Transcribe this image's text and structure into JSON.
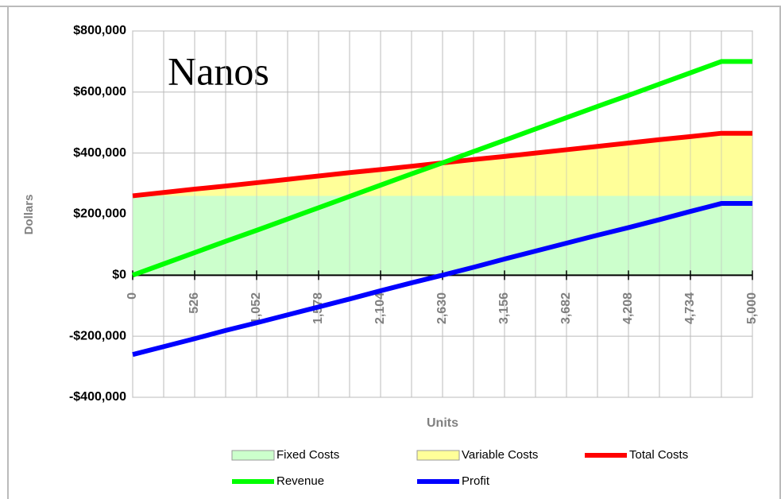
{
  "chart_data": {
    "type": "line",
    "title": "Nanos",
    "x_label": "Units",
    "y_label": "Dollars",
    "categories": [
      "0",
      null,
      "526",
      null,
      "1,052",
      null,
      "1,578",
      null,
      "2,104",
      null,
      "2,630",
      null,
      "3,156",
      null,
      "3,682",
      null,
      "4,208",
      null,
      "4,734",
      null,
      "5,000"
    ],
    "series": [
      {
        "name": "Fixed Costs",
        "kind": "area",
        "color": "#ccffcc",
        "values": [
          260000,
          260000,
          260000,
          260000,
          260000,
          260000,
          260000,
          260000,
          260000,
          260000,
          260000,
          260000,
          260000,
          260000,
          260000,
          260000,
          260000,
          260000,
          260000,
          260000,
          260000
        ]
      },
      {
        "name": "Variable Costs",
        "kind": "area",
        "color": "#ffff99",
        "values": [
          0,
          11000,
          22000,
          32000,
          43000,
          54000,
          65000,
          76000,
          86000,
          97000,
          108000,
          119000,
          129000,
          140000,
          151000,
          162000,
          173000,
          184000,
          194000,
          205000,
          205000
        ]
      },
      {
        "name": "Total Costs",
        "kind": "line",
        "color": "#ff0000",
        "values": [
          260000,
          271000,
          282000,
          292000,
          303000,
          314000,
          325000,
          336000,
          346000,
          357000,
          368000,
          379000,
          389000,
          400000,
          411000,
          422000,
          433000,
          444000,
          454000,
          465000,
          465000
        ]
      },
      {
        "name": "Revenue",
        "kind": "line",
        "color": "#00ff00",
        "values": [
          0,
          37000,
          74000,
          111000,
          147000,
          184000,
          221000,
          258000,
          295000,
          332000,
          368000,
          405000,
          442000,
          479000,
          516000,
          553000,
          589000,
          626000,
          663000,
          700000,
          700000
        ]
      },
      {
        "name": "Profit",
        "kind": "line",
        "color": "#0000ff",
        "values": [
          -260000,
          -234000,
          -208000,
          -181000,
          -156000,
          -130000,
          -104000,
          -78000,
          -51000,
          -25000,
          0,
          26000,
          53000,
          79000,
          105000,
          131000,
          156000,
          182000,
          209000,
          235000,
          235000
        ]
      }
    ],
    "ylim": [
      -400000,
      800000
    ],
    "yticks": [
      {
        "value": -400000,
        "label": "-$400,000"
      },
      {
        "value": -200000,
        "label": "-$200,000"
      },
      {
        "value": 0,
        "label": "$0"
      },
      {
        "value": 200000,
        "label": "$200,000"
      },
      {
        "value": 400000,
        "label": "$400,000"
      },
      {
        "value": 600000,
        "label": "$600,000"
      },
      {
        "value": 800000,
        "label": "$800,000"
      }
    ],
    "grid": true,
    "legend": "bottom"
  }
}
